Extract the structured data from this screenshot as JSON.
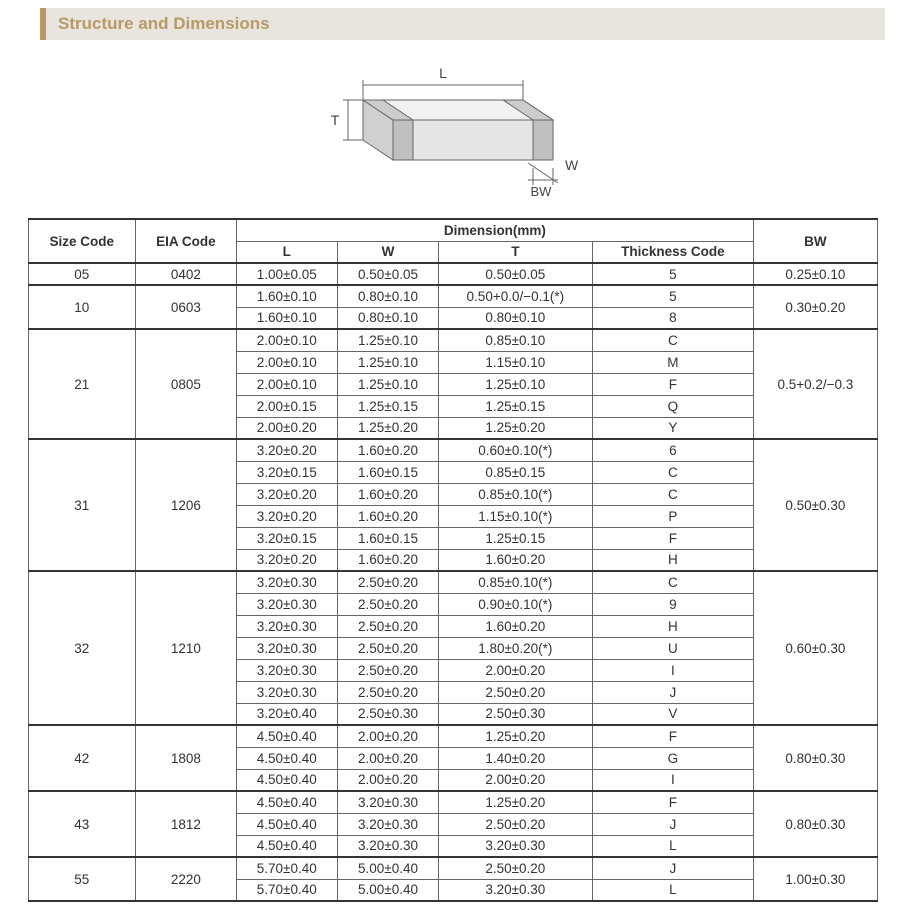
{
  "header": {
    "title": "Structure and Dimensions"
  },
  "diagram": {
    "labels": {
      "L": "L",
      "W": "W",
      "T": "T",
      "BW": "BW"
    },
    "stroke": "#666666",
    "fill_light": "#f2f2f2",
    "fill_mid": "#d9d9d9",
    "fill_dark": "#cccccc"
  },
  "table": {
    "header": {
      "size": "Size Code",
      "eia": "EIA Code",
      "dim": "Dimension(mm)",
      "L": "L",
      "W": "W",
      "T": "T",
      "tc": "Thickness Code",
      "BW": "BW"
    },
    "groups": [
      {
        "size": "05",
        "eia": "0402",
        "bw": "0.25±0.10",
        "rows": [
          {
            "L": "1.00±0.05",
            "W": "0.50±0.05",
            "T": "0.50±0.05",
            "tc": "5"
          }
        ]
      },
      {
        "size": "10",
        "eia": "0603",
        "bw": "0.30±0.20",
        "rows": [
          {
            "L": "1.60±0.10",
            "W": "0.80±0.10",
            "T": "0.50+0.0/−0.1(*)",
            "tc": "5"
          },
          {
            "L": "1.60±0.10",
            "W": "0.80±0.10",
            "T": "0.80±0.10",
            "tc": "8"
          }
        ]
      },
      {
        "size": "21",
        "eia": "0805",
        "bw": "0.5+0.2/−0.3",
        "rows": [
          {
            "L": "2.00±0.10",
            "W": "1.25±0.10",
            "T": "0.85±0.10",
            "tc": "C"
          },
          {
            "L": "2.00±0.10",
            "W": "1.25±0.10",
            "T": "1.15±0.10",
            "tc": "M"
          },
          {
            "L": "2.00±0.10",
            "W": "1.25±0.10",
            "T": "1.25±0.10",
            "tc": "F"
          },
          {
            "L": "2.00±0.15",
            "W": "1.25±0.15",
            "T": "1.25±0.15",
            "tc": "Q"
          },
          {
            "L": "2.00±0.20",
            "W": "1.25±0.20",
            "T": "1.25±0.20",
            "tc": "Y"
          }
        ]
      },
      {
        "size": "31",
        "eia": "1206",
        "bw": "0.50±0.30",
        "rows": [
          {
            "L": "3.20±0.20",
            "W": "1.60±0.20",
            "T": "0.60±0.10(*)",
            "tc": "6"
          },
          {
            "L": "3.20±0.15",
            "W": "1.60±0.15",
            "T": "0.85±0.15",
            "tc": "C"
          },
          {
            "L": "3.20±0.20",
            "W": "1.60±0.20",
            "T": "0.85±0.10(*)",
            "tc": "C"
          },
          {
            "L": "3.20±0.20",
            "W": "1.60±0.20",
            "T": "1.15±0.10(*)",
            "tc": "P"
          },
          {
            "L": "3.20±0.15",
            "W": "1.60±0.15",
            "T": "1.25±0.15",
            "tc": "F"
          },
          {
            "L": "3.20±0.20",
            "W": "1.60±0.20",
            "T": "1.60±0.20",
            "tc": "H"
          }
        ]
      },
      {
        "size": "32",
        "eia": "1210",
        "bw": "0.60±0.30",
        "rows": [
          {
            "L": "3.20±0.30",
            "W": "2.50±0.20",
            "T": "0.85±0.10(*)",
            "tc": "C"
          },
          {
            "L": "3.20±0.30",
            "W": "2.50±0.20",
            "T": "0.90±0.10(*)",
            "tc": "9"
          },
          {
            "L": "3.20±0.30",
            "W": "2.50±0.20",
            "T": "1.60±0.20",
            "tc": "H"
          },
          {
            "L": "3.20±0.30",
            "W": "2.50±0.20",
            "T": "1.80±0.20(*)",
            "tc": "U"
          },
          {
            "L": "3.20±0.30",
            "W": "2.50±0.20",
            "T": "2.00±0.20",
            "tc": "I"
          },
          {
            "L": "3.20±0.30",
            "W": "2.50±0.20",
            "T": "2.50±0.20",
            "tc": "J"
          },
          {
            "L": "3.20±0.40",
            "W": "2.50±0.30",
            "T": "2.50±0.30",
            "tc": "V"
          }
        ]
      },
      {
        "size": "42",
        "eia": "1808",
        "bw": "0.80±0.30",
        "rows": [
          {
            "L": "4.50±0.40",
            "W": "2.00±0.20",
            "T": "1.25±0.20",
            "tc": "F"
          },
          {
            "L": "4.50±0.40",
            "W": "2.00±0.20",
            "T": "1.40±0.20",
            "tc": "G"
          },
          {
            "L": "4.50±0.40",
            "W": "2.00±0.20",
            "T": "2.00±0.20",
            "tc": "I"
          }
        ]
      },
      {
        "size": "43",
        "eia": "1812",
        "bw": "0.80±0.30",
        "rows": [
          {
            "L": "4.50±0.40",
            "W": "3.20±0.30",
            "T": "1.25±0.20",
            "tc": "F"
          },
          {
            "L": "4.50±0.40",
            "W": "3.20±0.30",
            "T": "2.50±0.20",
            "tc": "J"
          },
          {
            "L": "4.50±0.40",
            "W": "3.20±0.30",
            "T": "3.20±0.30",
            "tc": "L"
          }
        ]
      },
      {
        "size": "55",
        "eia": "2220",
        "bw": "1.00±0.30",
        "rows": [
          {
            "L": "5.70±0.40",
            "W": "5.00±0.40",
            "T": "2.50±0.20",
            "tc": "J"
          },
          {
            "L": "5.70±0.40",
            "W": "5.00±0.40",
            "T": "3.20±0.30",
            "tc": "L"
          }
        ]
      }
    ]
  }
}
